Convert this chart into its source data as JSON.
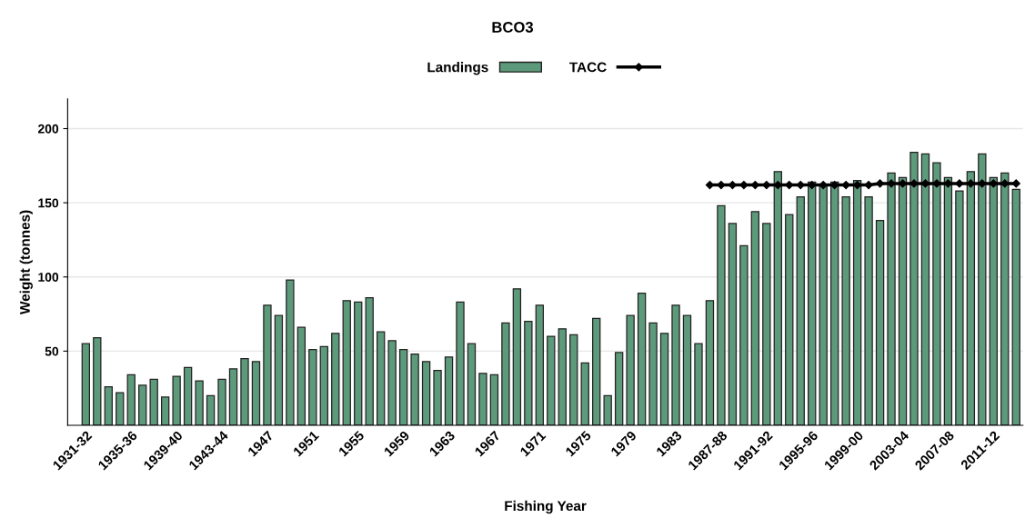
{
  "chart_data": {
    "type": "bar",
    "title": "BCO3",
    "xlabel": "Fishing Year",
    "ylabel": "Weight (tonnes)",
    "categories": [
      "1931-32",
      null,
      null,
      null,
      "1935-36",
      null,
      null,
      null,
      "1939-40",
      null,
      null,
      null,
      "1943-44",
      null,
      null,
      null,
      "1947",
      null,
      null,
      null,
      "1951",
      null,
      null,
      null,
      "1955",
      null,
      null,
      null,
      "1959",
      null,
      null,
      null,
      "1963",
      null,
      null,
      null,
      "1967",
      null,
      null,
      null,
      "1971",
      null,
      null,
      null,
      "1975",
      null,
      null,
      null,
      "1979",
      null,
      null,
      null,
      "1983",
      null,
      null,
      null,
      "1987-88",
      null,
      null,
      null,
      "1991-92",
      null,
      null,
      null,
      "1995-96",
      null,
      null,
      null,
      "1999-00",
      null,
      null,
      null,
      "2003-04",
      null,
      null,
      null,
      "2007-08",
      null,
      null,
      null,
      "2011-12",
      null,
      null
    ],
    "series": [
      {
        "name": "Landings",
        "color": "#5d9a7b",
        "values": [
          55,
          59,
          26,
          22,
          34,
          27,
          31,
          19,
          33,
          39,
          30,
          20,
          31,
          38,
          45,
          43,
          81,
          74,
          98,
          66,
          51,
          53,
          62,
          84,
          83,
          86,
          63,
          57,
          51,
          48,
          43,
          37,
          46,
          83,
          55,
          35,
          34,
          69,
          92,
          70,
          81,
          60,
          65,
          61,
          42,
          72,
          20,
          49,
          74,
          89,
          69,
          62,
          81,
          74,
          55,
          84,
          148,
          136,
          121,
          144,
          136,
          171,
          142,
          154,
          164,
          162,
          164,
          154,
          165,
          154,
          138,
          170,
          167,
          184,
          183,
          177,
          167,
          158,
          171,
          183,
          167,
          170,
          159
        ]
      },
      {
        "name": "TACC",
        "type": "line",
        "color": "#000000",
        "marker": "diamond",
        "line_style": "solid",
        "values": [
          null,
          null,
          null,
          null,
          null,
          null,
          null,
          null,
          null,
          null,
          null,
          null,
          null,
          null,
          null,
          null,
          null,
          null,
          null,
          null,
          null,
          null,
          null,
          null,
          null,
          null,
          null,
          null,
          null,
          null,
          null,
          null,
          null,
          null,
          null,
          null,
          null,
          null,
          null,
          null,
          null,
          null,
          null,
          null,
          null,
          null,
          null,
          null,
          null,
          null,
          null,
          null,
          null,
          null,
          null,
          162,
          162,
          162,
          162,
          162,
          162,
          162,
          162,
          162,
          162,
          162,
          162,
          162,
          162,
          162,
          163,
          163,
          163,
          163,
          163,
          163,
          163,
          163,
          163,
          163,
          163,
          163,
          163
        ]
      }
    ],
    "ylim": [
      0,
      220
    ],
    "yticks": [
      50,
      100,
      150,
      200
    ],
    "grid": "y",
    "legend": "top"
  }
}
